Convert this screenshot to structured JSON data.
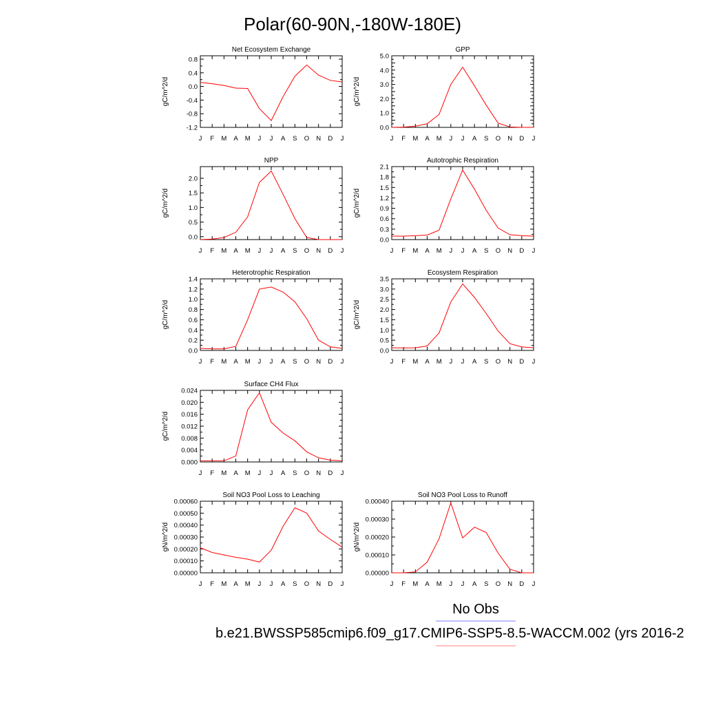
{
  "title": "Polar(60-90N,-180W-180E)",
  "legend": {
    "entries": [
      {
        "label": "No Obs",
        "color": "#7f7fff"
      },
      {
        "label": "b.e21.BWSSP585cmip6.f09_g17.CMIP6-SSP5-8.5-WACCM.002 (yrs 2016-2",
        "color": "#ff7f7f"
      }
    ]
  },
  "series_color": "#ff0000",
  "months": [
    "J",
    "F",
    "M",
    "A",
    "M",
    "J",
    "J",
    "A",
    "S",
    "O",
    "N",
    "D",
    "J"
  ],
  "chart_data": [
    {
      "type": "line",
      "title": "Net Ecosystem Exchange",
      "ylabel": "gC/m^2/d",
      "ylim": [
        -1.2,
        0.9
      ],
      "yticks": [
        -1.2,
        -0.8,
        -0.4,
        0.0,
        0.4,
        0.8
      ],
      "ytick_labels": [
        "-1.2",
        "-0.8",
        "-0.4",
        "0.0",
        "0.4",
        "0.8"
      ],
      "values": [
        0.12,
        0.08,
        0.03,
        -0.05,
        -0.06,
        -0.65,
        -1.0,
        -0.3,
        0.3,
        0.63,
        0.33,
        0.18,
        0.13
      ]
    },
    {
      "type": "line",
      "title": "GPP",
      "ylabel": "gC/m^2/d",
      "ylim": [
        0,
        5
      ],
      "yticks": [
        0,
        0.5,
        1,
        1.5,
        2,
        2.5,
        3,
        3.5,
        4,
        4.5,
        5
      ],
      "ytick_labels": [
        "0.0",
        "",
        "1.0",
        "",
        "2.0",
        "",
        "3.0",
        "",
        "4.0",
        "",
        "5.0"
      ],
      "values": [
        0.0,
        0.02,
        0.08,
        0.25,
        0.9,
        3.0,
        4.2,
        2.9,
        1.55,
        0.3,
        0.03,
        0.0,
        0.0
      ]
    },
    {
      "type": "line",
      "title": "NPP",
      "ylabel": "gC/m^2/d",
      "ylim": [
        -0.1,
        2.4
      ],
      "yticks": [
        0.0,
        0.5,
        1.0,
        1.5,
        2.0
      ],
      "ytick_labels": [
        "0.0",
        "0.5",
        "1.0",
        "1.5",
        "2.0"
      ],
      "values": [
        -0.1,
        -0.08,
        -0.03,
        0.15,
        0.68,
        1.86,
        2.25,
        1.45,
        0.62,
        -0.03,
        -0.1,
        -0.1,
        -0.1
      ]
    },
    {
      "type": "line",
      "title": "Autotrophic Respiration",
      "ylabel": "gC/m^2/d",
      "ylim": [
        0,
        2.1
      ],
      "yticks": [
        0.0,
        0.3,
        0.6,
        0.9,
        1.2,
        1.5,
        1.8,
        2.1
      ],
      "ytick_labels": [
        "0.0",
        "0.3",
        "0.6",
        "0.9",
        "1.2",
        "1.5",
        "1.8",
        "2.1"
      ],
      "values": [
        0.1,
        0.1,
        0.11,
        0.13,
        0.27,
        1.17,
        2.0,
        1.45,
        0.84,
        0.33,
        0.14,
        0.11,
        0.1
      ]
    },
    {
      "type": "line",
      "title": "Heterotrophic Respiration",
      "ylabel": "gC/m^2/d",
      "ylim": [
        0,
        1.4
      ],
      "yticks": [
        0.0,
        0.2,
        0.4,
        0.6,
        0.8,
        1.0,
        1.2,
        1.4
      ],
      "ytick_labels": [
        "0.0",
        "0.2",
        "0.4",
        "0.6",
        "0.8",
        "1.0",
        "1.2",
        "1.4"
      ],
      "values": [
        0.04,
        0.03,
        0.03,
        0.08,
        0.6,
        1.2,
        1.24,
        1.14,
        0.95,
        0.62,
        0.2,
        0.07,
        0.04
      ]
    },
    {
      "type": "line",
      "title": "Ecosystem Respiration",
      "ylabel": "gC/m^2/d",
      "ylim": [
        0,
        3.5
      ],
      "yticks": [
        0.0,
        0.5,
        1.0,
        1.5,
        2.0,
        2.5,
        3.0,
        3.5
      ],
      "ytick_labels": [
        "0.0",
        "0.5",
        "1.0",
        "1.5",
        "2.0",
        "2.5",
        "3.0",
        "3.5"
      ],
      "values": [
        0.13,
        0.12,
        0.13,
        0.22,
        0.85,
        2.37,
        3.25,
        2.59,
        1.8,
        0.95,
        0.33,
        0.17,
        0.13
      ]
    },
    {
      "type": "line",
      "title": "Surface CH4 Flux",
      "ylabel": "gC/m^2/d",
      "ylim": [
        0,
        0.024
      ],
      "yticks": [
        0.0,
        0.004,
        0.008,
        0.012,
        0.016,
        0.02,
        0.024
      ],
      "ytick_labels": [
        "0.000",
        "0.004",
        "0.008",
        "0.012",
        "0.016",
        "0.020",
        "0.024"
      ],
      "values": [
        0.0004,
        0.0004,
        0.0004,
        0.002,
        0.0175,
        0.0232,
        0.0133,
        0.0097,
        0.0071,
        0.0034,
        0.0014,
        0.0006,
        0.0004
      ]
    },
    {
      "type": "line",
      "title": "Soil NO3 Pool Loss to Leaching",
      "ylabel": "gN/m^2/d",
      "ylim": [
        0,
        0.0006
      ],
      "yticks": [
        0.0,
        0.0001,
        0.0002,
        0.0003,
        0.0004,
        0.0005,
        0.0006
      ],
      "ytick_labels": [
        "0.00000",
        "0.00010",
        "0.00020",
        "0.00030",
        "0.00040",
        "0.00050",
        "0.00060"
      ],
      "values": [
        0.00021,
        0.00017,
        0.00015,
        0.00013,
        0.000115,
        9e-05,
        0.00019,
        0.00039,
        0.000545,
        0.0005,
        0.00035,
        0.00028,
        0.000215
      ]
    },
    {
      "type": "line",
      "title": "Soil NO3 Pool Loss to Runoff",
      "ylabel": "gN/m^2/d",
      "ylim": [
        0,
        0.0004
      ],
      "yticks": [
        0.0,
        0.0001,
        0.0002,
        0.0003,
        0.0004
      ],
      "ytick_labels": [
        "0.00000",
        "0.00010",
        "0.00020",
        "0.00030",
        "0.00040"
      ],
      "values": [
        0.0,
        0.0,
        5e-06,
        6e-05,
        0.00019,
        0.00039,
        0.000195,
        0.000255,
        0.000225,
        0.00011,
        2e-05,
        0.0,
        0.0
      ]
    }
  ]
}
